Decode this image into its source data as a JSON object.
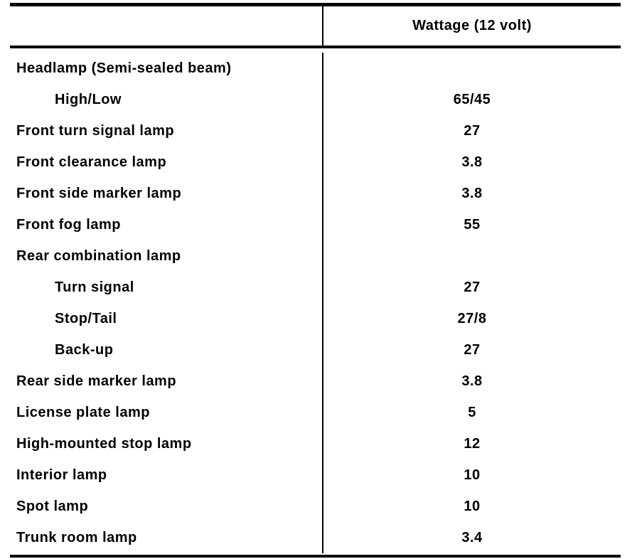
{
  "table": {
    "header": {
      "col1": "",
      "col2": "Wattage (12 volt)"
    },
    "rows": [
      {
        "label": "Headlamp (Semi-sealed beam)",
        "value": "",
        "indent": false
      },
      {
        "label": "High/Low",
        "value": "65/45",
        "indent": true
      },
      {
        "label": "Front turn signal lamp",
        "value": "27",
        "indent": false
      },
      {
        "label": "Front clearance lamp",
        "value": "3.8",
        "indent": false
      },
      {
        "label": "Front side marker lamp",
        "value": "3.8",
        "indent": false
      },
      {
        "label": "Front fog lamp",
        "value": "55",
        "indent": false
      },
      {
        "label": "Rear combination lamp",
        "value": "",
        "indent": false
      },
      {
        "label": "Turn signal",
        "value": "27",
        "indent": true
      },
      {
        "label": "Stop/Tail",
        "value": "27/8",
        "indent": true
      },
      {
        "label": "Back-up",
        "value": "27",
        "indent": true
      },
      {
        "label": "Rear side marker lamp",
        "value": "3.8",
        "indent": false
      },
      {
        "label": "License plate lamp",
        "value": "5",
        "indent": false
      },
      {
        "label": "High-mounted stop lamp",
        "value": "12",
        "indent": false
      },
      {
        "label": "Interior lamp",
        "value": "10",
        "indent": false
      },
      {
        "label": "Spot lamp",
        "value": "10",
        "indent": false
      },
      {
        "label": "Trunk room lamp",
        "value": "3.4",
        "indent": false
      }
    ],
    "colors": {
      "text": "#000000",
      "background": "#ffffff",
      "rule": "#000000"
    }
  }
}
